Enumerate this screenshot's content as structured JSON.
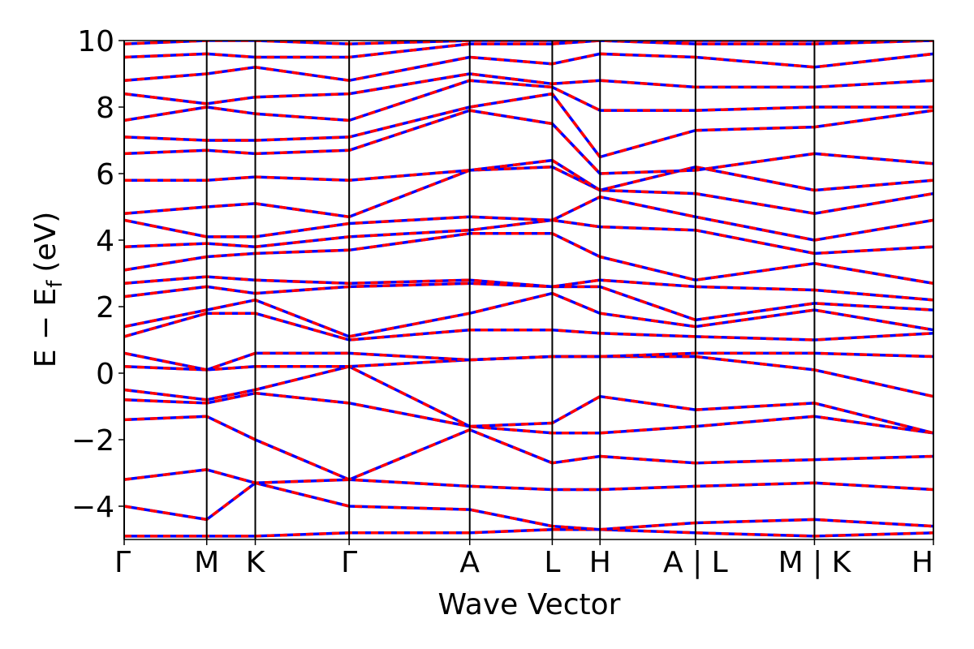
{
  "chart_data": {
    "type": "line",
    "xlabel": "Wave Vector",
    "ylabel": {
      "main": "E − E",
      "sub": "f",
      "unit": "(eV)"
    },
    "xlim": [
      0,
      1
    ],
    "ylim": [
      -5,
      10
    ],
    "xticks": [
      {
        "value": 0,
        "label": "Γ"
      },
      {
        "value": 0.102,
        "label": "M"
      },
      {
        "value": 0.162,
        "label": "K"
      },
      {
        "value": 0.278,
        "label": "Γ"
      },
      {
        "value": 0.427,
        "label": "A"
      },
      {
        "value": 0.529,
        "label": "L"
      },
      {
        "value": 0.588,
        "label": "H"
      },
      {
        "value": 0.706,
        "label": "A | L"
      },
      {
        "value": 0.853,
        "label": "M | K"
      },
      {
        "value": 1,
        "label": "H"
      }
    ],
    "yticks": [
      {
        "value": -4,
        "label": "−4"
      },
      {
        "value": -2,
        "label": "−2"
      },
      0,
      2,
      4,
      6,
      8,
      10
    ],
    "x": [
      0,
      0.102,
      0.162,
      0.278,
      0.427,
      0.529,
      0.588,
      0.706,
      0.853,
      1
    ],
    "colors": {
      "solid": "#0000ff",
      "dashed": "#ff0000"
    },
    "vlines": true,
    "bands": [
      [
        -4.9,
        -4.9,
        -4.9,
        -4.8,
        -4.8,
        -4.7,
        -4.7,
        -4.8,
        -4.9,
        -4.8
      ],
      [
        -4.0,
        -4.4,
        -3.3,
        -4.0,
        -4.1,
        -4.6,
        -4.7,
        -4.5,
        -4.4,
        -4.6
      ],
      [
        -3.2,
        -2.9,
        -3.3,
        -3.2,
        -3.4,
        -3.5,
        -3.5,
        -3.4,
        -3.3,
        -3.5
      ],
      [
        -1.4,
        -1.3,
        -2.0,
        -3.2,
        -1.7,
        -2.7,
        -2.5,
        -2.7,
        -2.6,
        -2.5
      ],
      [
        -0.8,
        -0.9,
        -0.6,
        -0.9,
        -1.6,
        -1.8,
        -1.8,
        -1.6,
        -1.3,
        -1.8
      ],
      [
        -0.5,
        -0.8,
        -0.5,
        0.2,
        -1.6,
        -1.5,
        -0.7,
        -1.1,
        -0.9,
        -1.8
      ],
      [
        0.2,
        0.1,
        0.2,
        0.2,
        0.4,
        0.5,
        0.5,
        0.5,
        0.1,
        -0.7
      ],
      [
        0.6,
        0.1,
        0.6,
        0.6,
        0.4,
        0.5,
        0.5,
        0.6,
        0.6,
        0.5
      ],
      [
        1.1,
        1.8,
        1.8,
        1.0,
        1.3,
        1.3,
        1.2,
        1.1,
        1.0,
        1.2
      ],
      [
        1.4,
        1.9,
        2.2,
        1.1,
        1.8,
        2.4,
        1.8,
        1.4,
        1.9,
        1.3
      ],
      [
        2.3,
        2.6,
        2.4,
        2.6,
        2.7,
        2.6,
        2.6,
        1.6,
        2.1,
        1.9
      ],
      [
        2.7,
        2.9,
        2.8,
        2.7,
        2.8,
        2.6,
        2.8,
        2.6,
        2.5,
        2.2
      ],
      [
        3.1,
        3.5,
        3.6,
        3.7,
        4.2,
        4.2,
        3.5,
        2.8,
        3.3,
        2.7
      ],
      [
        3.8,
        3.9,
        3.8,
        4.1,
        4.3,
        4.6,
        4.4,
        4.3,
        3.6,
        3.8
      ],
      [
        4.6,
        4.1,
        4.1,
        4.5,
        4.7,
        4.6,
        5.3,
        4.7,
        4.0,
        4.6
      ],
      [
        4.8,
        5.0,
        5.1,
        4.7,
        6.1,
        6.2,
        5.5,
        5.4,
        4.8,
        5.4
      ],
      [
        5.8,
        5.8,
        5.9,
        5.8,
        6.1,
        6.4,
        5.5,
        6.2,
        5.5,
        5.8
      ],
      [
        6.6,
        6.7,
        6.6,
        6.7,
        7.9,
        7.5,
        6.0,
        6.1,
        6.6,
        6.3
      ],
      [
        7.1,
        7.0,
        7.0,
        7.1,
        8.0,
        8.4,
        6.5,
        7.3,
        7.4,
        7.9
      ],
      [
        7.6,
        8.0,
        7.8,
        7.6,
        8.8,
        8.6,
        7.9,
        7.9,
        8.0,
        8.0
      ],
      [
        8.4,
        8.1,
        8.3,
        8.4,
        9.0,
        8.7,
        8.8,
        8.6,
        8.6,
        8.8
      ],
      [
        8.8,
        9.0,
        9.2,
        8.8,
        9.5,
        9.3,
        9.6,
        9.5,
        9.2,
        9.6
      ],
      [
        9.5,
        9.6,
        9.5,
        9.5,
        9.9,
        9.9,
        10.0,
        9.9,
        9.9,
        10.0
      ],
      [
        9.9,
        10.0,
        10.0,
        9.9,
        10.0,
        10.0,
        10.0,
        10.0,
        10.0,
        10.0
      ]
    ]
  }
}
